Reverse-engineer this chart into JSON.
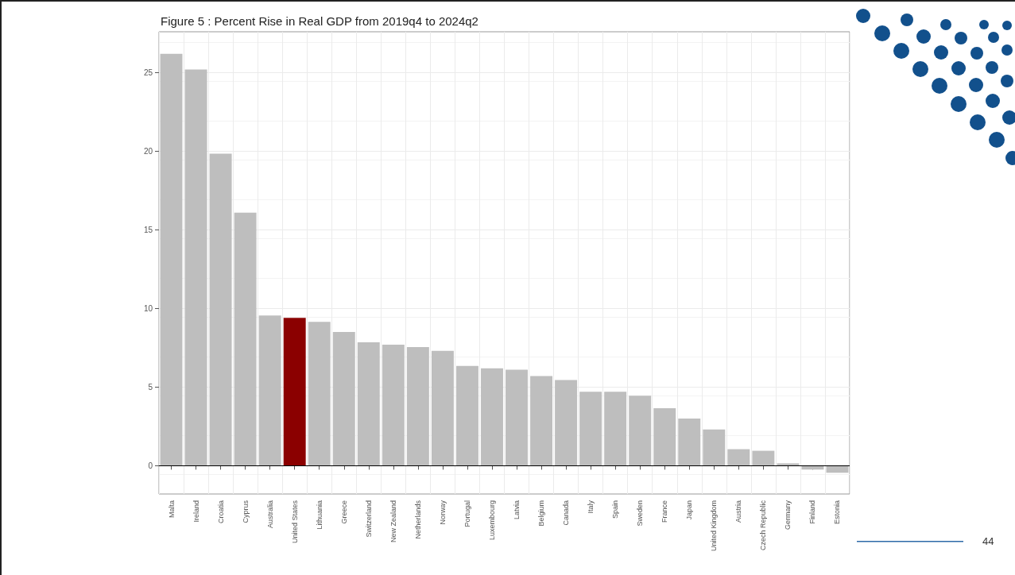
{
  "chart_data": {
    "type": "bar",
    "title": "Figure 5 : Percent Rise in Real GDP from 2019q4 to 2024q2",
    "categories": [
      "Malta",
      "Ireland",
      "Croatia",
      "Cyprus",
      "Australia",
      "United States",
      "Lithuania",
      "Greece",
      "Switzerland",
      "New Zealand",
      "Netherlands",
      "Norway",
      "Portugal",
      "Luxembourg",
      "Latvia",
      "Belgium",
      "Canada",
      "Italy",
      "Spain",
      "Sweden",
      "France",
      "Japan",
      "United Kingdom",
      "Austria",
      "Czech Republic",
      "Germany",
      "Finland",
      "Estonia"
    ],
    "values": [
      26.2,
      25.2,
      19.85,
      16.1,
      9.55,
      9.4,
      9.15,
      8.5,
      7.85,
      7.7,
      7.55,
      7.3,
      6.35,
      6.2,
      6.1,
      5.7,
      5.45,
      4.7,
      4.7,
      4.45,
      3.65,
      3.0,
      2.3,
      1.05,
      0.95,
      0.15,
      -0.25,
      -0.45
    ],
    "colors": [
      "#bebebe",
      "#bebebe",
      "#bebebe",
      "#bebebe",
      "#bebebe",
      "#8b0000",
      "#bebebe",
      "#bebebe",
      "#bebebe",
      "#bebebe",
      "#bebebe",
      "#bebebe",
      "#bebebe",
      "#bebebe",
      "#bebebe",
      "#bebebe",
      "#bebebe",
      "#bebebe",
      "#bebebe",
      "#bebebe",
      "#bebebe",
      "#bebebe",
      "#bebebe",
      "#bebebe",
      "#bebebe",
      "#bebebe",
      "#bebebe",
      "#bebebe"
    ],
    "ylim": [
      -1.8,
      27.6
    ],
    "yticks": [
      0,
      5,
      10,
      15,
      20,
      25
    ],
    "grid": true,
    "ref_lines": [
      {
        "axis": "y",
        "value": 0,
        "color": "#000000"
      }
    ],
    "annotations": [
      "44"
    ]
  }
}
